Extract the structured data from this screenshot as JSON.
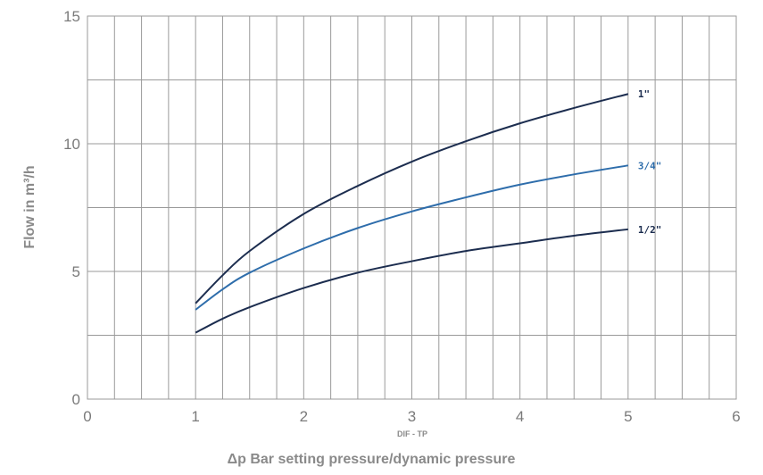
{
  "chart_data": {
    "type": "line",
    "ylabel": "Flow in m³/h",
    "xlabel": "Δp Bar setting pressure/dynamic pressure",
    "x_sublabel": "DIF - TP",
    "xlim": [
      0,
      6
    ],
    "ylim": [
      0,
      15
    ],
    "x_ticks": [
      "0",
      "1",
      "2",
      "3",
      "4",
      "5",
      "6"
    ],
    "y_ticks": [
      "0",
      "5",
      "10",
      "15"
    ],
    "grid": true,
    "x_minor_step": 0.25,
    "y_minor_step": 2.5,
    "series": [
      {
        "name": "1\"",
        "color": "#1c2d4f",
        "x": [
          1,
          1.25,
          1.5,
          2,
          2.5,
          3,
          3.5,
          4,
          4.5,
          5
        ],
        "y": [
          3.75,
          4.85,
          5.8,
          7.25,
          8.35,
          9.3,
          10.1,
          10.8,
          11.4,
          11.95
        ]
      },
      {
        "name": "3/4\"",
        "color": "#2e6dab",
        "x": [
          1,
          1.25,
          1.5,
          2,
          2.5,
          3,
          3.5,
          4,
          4.5,
          5
        ],
        "y": [
          3.5,
          4.3,
          4.95,
          5.9,
          6.7,
          7.35,
          7.9,
          8.4,
          8.8,
          9.15
        ]
      },
      {
        "name": "1/2\"",
        "color": "#1c2d4f",
        "x": [
          1,
          1.25,
          1.5,
          2,
          2.5,
          3,
          3.5,
          4,
          4.5,
          5
        ],
        "y": [
          2.6,
          3.15,
          3.6,
          4.35,
          4.95,
          5.4,
          5.8,
          6.1,
          6.4,
          6.65
        ]
      }
    ]
  }
}
